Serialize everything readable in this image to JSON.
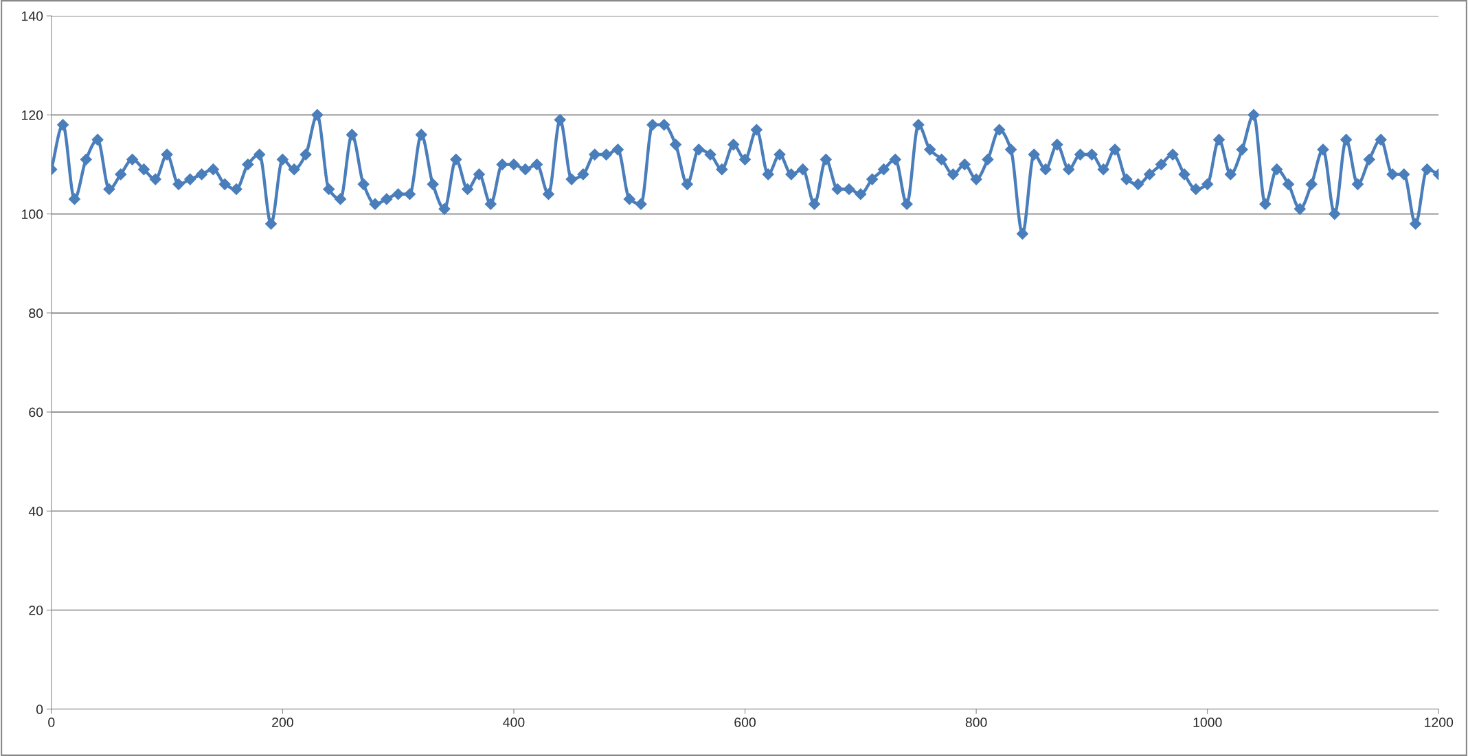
{
  "chart_data": {
    "type": "line",
    "line_style": "solid",
    "marker": "diamond",
    "grid": "y",
    "x": [
      0,
      10,
      20,
      30,
      40,
      50,
      60,
      70,
      80,
      90,
      100,
      110,
      120,
      130,
      140,
      150,
      160,
      170,
      180,
      190,
      200,
      210,
      220,
      230,
      240,
      250,
      260,
      270,
      280,
      290,
      300,
      310,
      320,
      330,
      340,
      350,
      360,
      370,
      380,
      390,
      400,
      410,
      420,
      430,
      440,
      450,
      460,
      470,
      480,
      490,
      500,
      510,
      520,
      530,
      540,
      550,
      560,
      570,
      580,
      590,
      600,
      610,
      620,
      630,
      640,
      650,
      660,
      670,
      680,
      690,
      700,
      710,
      720,
      730,
      740,
      750,
      760,
      770,
      780,
      790,
      800,
      810,
      820,
      830,
      840,
      850,
      860,
      870,
      880,
      890,
      900,
      910,
      920,
      930,
      940,
      950,
      960,
      970,
      980,
      990,
      1000,
      1010,
      1020,
      1030,
      1040,
      1050,
      1060,
      1070,
      1080,
      1090,
      1100,
      1110,
      1120,
      1130,
      1140,
      1150,
      1160,
      1170,
      1180,
      1190,
      1200
    ],
    "series": [
      {
        "color": "#4a7ebb",
        "values": [
          109,
          118,
          103,
          111,
          115,
          105,
          108,
          111,
          109,
          107,
          112,
          106,
          107,
          108,
          109,
          106,
          105,
          110,
          112,
          98,
          111,
          109,
          112,
          120,
          105,
          103,
          116,
          106,
          102,
          103,
          104,
          104,
          116,
          106,
          101,
          111,
          105,
          108,
          102,
          110,
          110,
          109,
          110,
          104,
          119,
          107,
          108,
          112,
          112,
          113,
          103,
          102,
          118,
          118,
          114,
          106,
          113,
          112,
          109,
          114,
          111,
          117,
          108,
          112,
          108,
          109,
          102,
          111,
          105,
          105,
          104,
          107,
          109,
          111,
          102,
          118,
          113,
          111,
          108,
          110,
          107,
          111,
          117,
          113,
          96,
          112,
          109,
          114,
          109,
          112,
          112,
          109,
          113,
          107,
          106,
          108,
          110,
          112,
          108,
          105,
          106,
          115,
          108,
          113,
          120,
          102,
          109,
          106,
          101,
          106,
          113,
          100,
          115,
          106,
          111,
          115,
          108,
          108,
          98,
          109,
          108
        ]
      }
    ],
    "xlim": [
      0,
      1200
    ],
    "xticks": [
      0,
      200,
      400,
      600,
      800,
      1000,
      1200
    ],
    "ylim": [
      0,
      140
    ],
    "yticks": [
      0,
      20,
      40,
      60,
      80,
      100,
      120,
      140
    ]
  }
}
